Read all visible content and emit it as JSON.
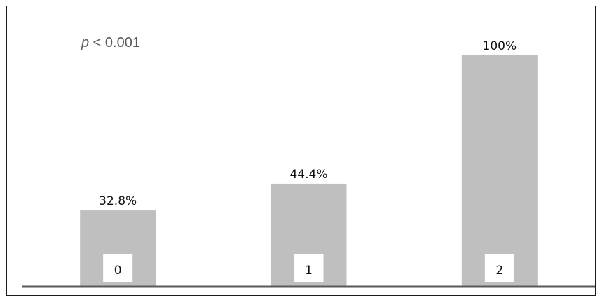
{
  "annotation": {
    "p_symbol": "p",
    "p_rest": " < 0.001"
  },
  "chart_data": {
    "type": "bar",
    "categories": [
      "0",
      "1",
      "2"
    ],
    "values": [
      32.8,
      44.4,
      100
    ],
    "data_labels": [
      "32.8%",
      "44.4%",
      "100%"
    ],
    "title": "",
    "xlabel": "",
    "ylabel": "",
    "ylim": [
      0,
      100
    ],
    "unit": "%",
    "grid": false,
    "legend": "none",
    "colors": {
      "bar": "#bfbfbf",
      "axis": "#595959",
      "category_box": "#ffffff"
    }
  }
}
